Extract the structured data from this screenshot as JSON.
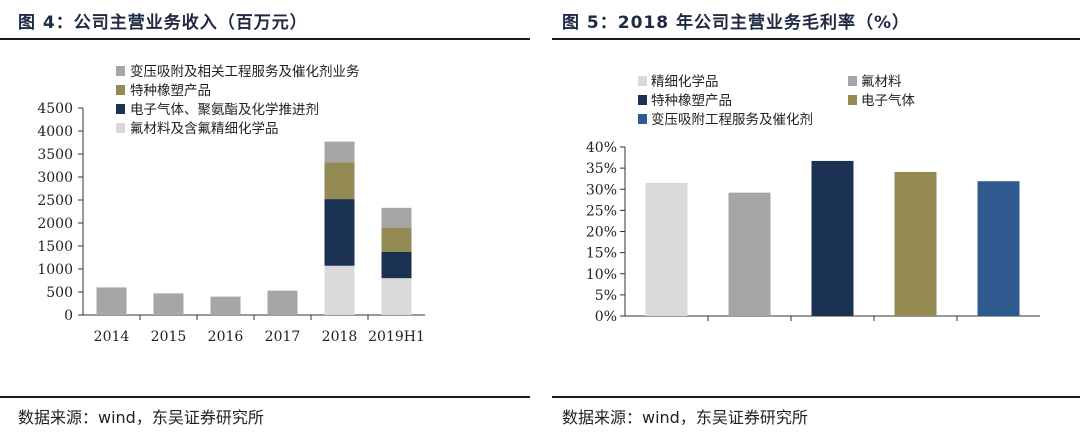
{
  "panels": {
    "left": {
      "title": "图 4：公司主营业务收入（百万元）",
      "source": "数据来源：wind，东吴证券研究所"
    },
    "right": {
      "title": "图 5：2018 年公司主营业务毛利率（%）",
      "source": "数据来源：wind，东吴证券研究所"
    }
  },
  "chart_data": [
    {
      "type": "bar",
      "stacked": true,
      "title": "图 4：公司主营业务收入（百万元）",
      "categories": [
        "2014",
        "2015",
        "2016",
        "2017",
        "2018",
        "2019H1"
      ],
      "ylim": [
        0,
        4500
      ],
      "yticks": [
        0,
        500,
        1000,
        1500,
        2000,
        2500,
        3000,
        3500,
        4000,
        4500
      ],
      "legend_position": "top-left",
      "series": [
        {
          "name": "氟材料及含氟精细化学品",
          "color": "#d9d9d9",
          "values": [
            0,
            0,
            0,
            0,
            1070,
            800
          ]
        },
        {
          "name": "电子气体、聚氨酯及化学推进剂",
          "color": "#1c3254",
          "values": [
            0,
            0,
            0,
            0,
            1450,
            570
          ]
        },
        {
          "name": "特种橡塑产品",
          "color": "#948a54",
          "values": [
            0,
            0,
            0,
            0,
            800,
            530
          ]
        },
        {
          "name": "变压吸附及相关工程服务及催化剂业务",
          "color": "#a6a6a6",
          "values": [
            600,
            470,
            400,
            530,
            450,
            430
          ]
        }
      ],
      "legend_order": [
        "变压吸附及相关工程服务及催化剂业务",
        "特种橡塑产品",
        "电子气体、聚氨酯及化学推进剂",
        "氟材料及含氟精细化学品"
      ]
    },
    {
      "type": "bar",
      "title": "图 5：2018 年公司主营业务毛利率（%）",
      "categories": [
        "精细化学品",
        "氟材料",
        "特种橡塑产品",
        "电子气体",
        "变压吸附工程服务及催化剂"
      ],
      "values": [
        31.5,
        29.2,
        36.7,
        34.1,
        31.9
      ],
      "colors": [
        "#d9d9d9",
        "#a6a6a6",
        "#1c3254",
        "#948a54",
        "#2f5a8f"
      ],
      "ylim": [
        0,
        40
      ],
      "yticks": [
        "0%",
        "5%",
        "10%",
        "15%",
        "20%",
        "25%",
        "30%",
        "35%",
        "40%"
      ],
      "legend_position": "top-left",
      "xtick_labels": false
    }
  ]
}
